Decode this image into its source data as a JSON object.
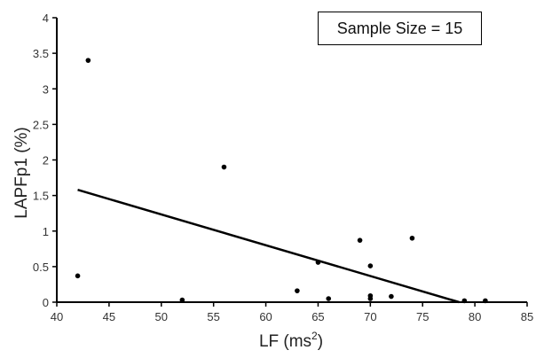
{
  "chart_data": {
    "type": "scatter",
    "xlabel_main": "LF (ms",
    "xlabel_sup": "2",
    "xlabel_end": ")",
    "ylabel": "LAPFp1 (%)",
    "xlim": [
      40,
      85
    ],
    "ylim": [
      0,
      4
    ],
    "xticks": [
      40,
      45,
      50,
      55,
      60,
      65,
      70,
      75,
      80,
      85
    ],
    "yticks": [
      0,
      0.5,
      1,
      1.5,
      2,
      2.5,
      3,
      3.5,
      4
    ],
    "points": [
      {
        "x": 42,
        "y": 0.37
      },
      {
        "x": 43,
        "y": 3.4
      },
      {
        "x": 52,
        "y": 0.03
      },
      {
        "x": 56,
        "y": 1.9
      },
      {
        "x": 63,
        "y": 0.16
      },
      {
        "x": 65,
        "y": 0.56
      },
      {
        "x": 66,
        "y": 0.05
      },
      {
        "x": 69,
        "y": 0.87
      },
      {
        "x": 70,
        "y": 0.51
      },
      {
        "x": 70,
        "y": 0.09
      },
      {
        "x": 70,
        "y": 0.05
      },
      {
        "x": 72,
        "y": 0.08
      },
      {
        "x": 74,
        "y": 0.9
      },
      {
        "x": 79,
        "y": 0.02
      },
      {
        "x": 81,
        "y": 0.02
      }
    ],
    "trendline": {
      "x": [
        42,
        78.5
      ],
      "y": [
        1.58,
        0.0
      ]
    },
    "annotation": "Sample Size = 15",
    "grid": false,
    "colors": {
      "points": "#000000",
      "line": "#000000",
      "axis": "#000000",
      "text": "#333333"
    }
  }
}
